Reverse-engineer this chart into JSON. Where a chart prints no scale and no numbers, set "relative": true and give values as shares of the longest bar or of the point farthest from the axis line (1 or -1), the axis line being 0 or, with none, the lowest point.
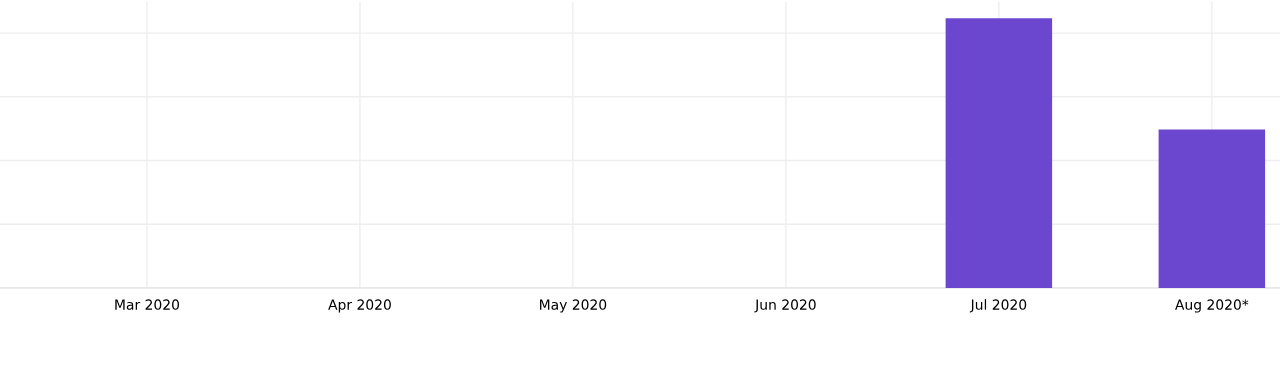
{
  "chart_data": {
    "type": "bar",
    "relative": true,
    "categories": [
      "Mar 2020",
      "Apr 2020",
      "May 2020",
      "Jun 2020",
      "Jul 2020",
      "Aug 2020*"
    ],
    "series": [
      {
        "color": "#6b46cf",
        "values": [
          0,
          0,
          0,
          0,
          1,
          0.587
        ]
      }
    ],
    "grid": true
  }
}
